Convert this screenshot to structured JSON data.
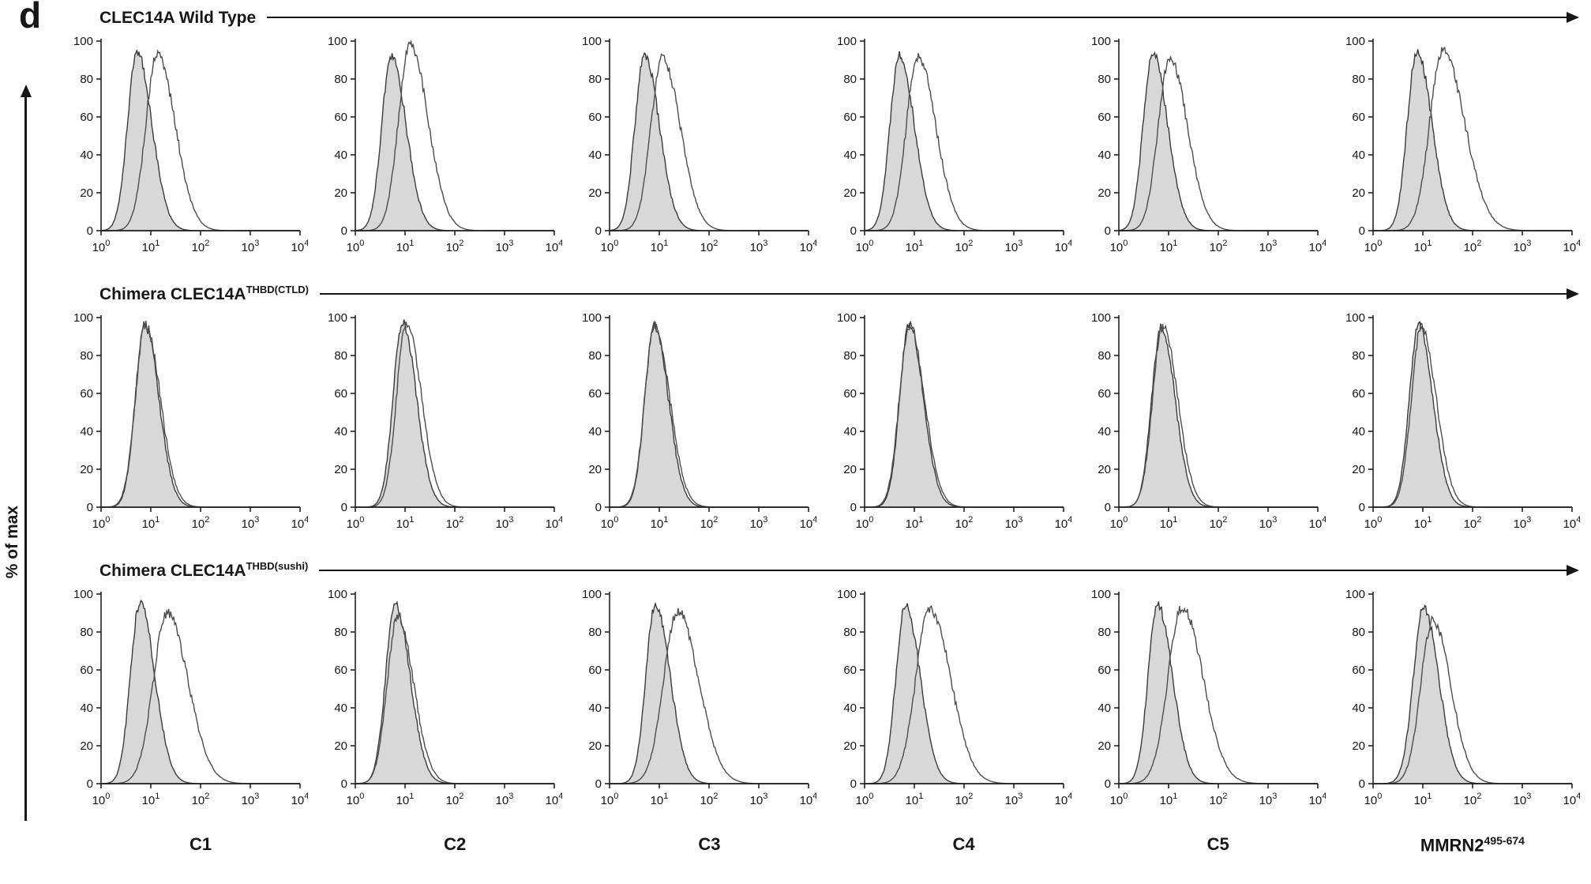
{
  "panel_label": "d",
  "y_axis_label": "% of max",
  "rows": [
    {
      "title": "CLEC14A Wild Type",
      "superscript": ""
    },
    {
      "title": "Chimera CLEC14A",
      "superscript": "THBD(CTLD)"
    },
    {
      "title": "Chimera CLEC14A",
      "superscript": "THBD(sushi)"
    }
  ],
  "columns": [
    {
      "label": "C1",
      "superscript": ""
    },
    {
      "label": "C2",
      "superscript": ""
    },
    {
      "label": "C3",
      "superscript": ""
    },
    {
      "label": "C4",
      "superscript": ""
    },
    {
      "label": "C5",
      "superscript": ""
    },
    {
      "label": "MMRN2",
      "superscript": "495-674"
    }
  ],
  "axes": {
    "y_label": "% of max",
    "y_ticks": [
      0,
      20,
      40,
      60,
      80,
      100
    ],
    "x_scale": "log10",
    "x_tick_exponents": [
      0,
      1,
      2,
      3,
      4
    ],
    "x_tick_base": "10"
  },
  "colors": {
    "filled_fill": "#d8d8d8",
    "filled_stroke": "#3c3c3c",
    "open_stroke": "#4d4d4d",
    "axis": "#161616",
    "text": "#161616"
  },
  "chart_data": [
    {
      "row": 0,
      "col": 0,
      "row_title": "CLEC14A Wild Type",
      "column_label": "C1",
      "type": "area",
      "x_scale": "log10",
      "xlim_decades": [
        0,
        4
      ],
      "ylim": [
        0,
        100
      ],
      "series": [
        {
          "name": "gray-filled",
          "peak_log10": 0.72,
          "peak_percent": 94,
          "sigma_left": 0.19,
          "sigma_right": 0.3
        },
        {
          "name": "open-line",
          "peak_log10": 1.13,
          "peak_percent": 93,
          "sigma_left": 0.23,
          "sigma_right": 0.36
        }
      ]
    },
    {
      "row": 0,
      "col": 1,
      "row_title": "CLEC14A Wild Type",
      "column_label": "C2",
      "type": "area",
      "x_scale": "log10",
      "xlim_decades": [
        0,
        4
      ],
      "ylim": [
        0,
        100
      ],
      "series": [
        {
          "name": "gray-filled",
          "peak_log10": 0.72,
          "peak_percent": 92,
          "sigma_left": 0.19,
          "sigma_right": 0.3
        },
        {
          "name": "open-line",
          "peak_log10": 1.1,
          "peak_percent": 98,
          "sigma_left": 0.23,
          "sigma_right": 0.36
        }
      ]
    },
    {
      "row": 0,
      "col": 2,
      "row_title": "CLEC14A Wild Type",
      "column_label": "C3",
      "type": "area",
      "x_scale": "log10",
      "xlim_decades": [
        0,
        4
      ],
      "ylim": [
        0,
        100
      ],
      "series": [
        {
          "name": "gray-filled",
          "peak_log10": 0.7,
          "peak_percent": 93,
          "sigma_left": 0.19,
          "sigma_right": 0.3
        },
        {
          "name": "open-line",
          "peak_log10": 1.06,
          "peak_percent": 91,
          "sigma_left": 0.23,
          "sigma_right": 0.36
        }
      ]
    },
    {
      "row": 0,
      "col": 3,
      "row_title": "CLEC14A Wild Type",
      "column_label": "C4",
      "type": "area",
      "x_scale": "log10",
      "xlim_decades": [
        0,
        4
      ],
      "ylim": [
        0,
        100
      ],
      "series": [
        {
          "name": "gray-filled",
          "peak_log10": 0.7,
          "peak_percent": 93,
          "sigma_left": 0.19,
          "sigma_right": 0.3
        },
        {
          "name": "open-line",
          "peak_log10": 1.07,
          "peak_percent": 92,
          "sigma_left": 0.23,
          "sigma_right": 0.36
        }
      ]
    },
    {
      "row": 0,
      "col": 4,
      "row_title": "CLEC14A Wild Type",
      "column_label": "C5",
      "type": "area",
      "x_scale": "log10",
      "xlim_decades": [
        0,
        4
      ],
      "ylim": [
        0,
        100
      ],
      "series": [
        {
          "name": "gray-filled",
          "peak_log10": 0.68,
          "peak_percent": 94,
          "sigma_left": 0.19,
          "sigma_right": 0.3
        },
        {
          "name": "open-line",
          "peak_log10": 1.02,
          "peak_percent": 91,
          "sigma_left": 0.23,
          "sigma_right": 0.36
        }
      ]
    },
    {
      "row": 0,
      "col": 5,
      "row_title": "CLEC14A Wild Type",
      "column_label": "MMRN2 495-674",
      "type": "area",
      "x_scale": "log10",
      "xlim_decades": [
        0,
        4
      ],
      "ylim": [
        0,
        100
      ],
      "series": [
        {
          "name": "gray-filled",
          "peak_log10": 0.88,
          "peak_percent": 95,
          "sigma_left": 0.19,
          "sigma_right": 0.3
        },
        {
          "name": "open-line",
          "peak_log10": 1.4,
          "peak_percent": 95,
          "sigma_left": 0.26,
          "sigma_right": 0.44
        }
      ]
    },
    {
      "row": 1,
      "col": 0,
      "row_title": "Chimera CLEC14A THBD(CTLD)",
      "column_label": "C1",
      "type": "area",
      "x_scale": "log10",
      "xlim_decades": [
        0,
        4
      ],
      "ylim": [
        0,
        100
      ],
      "series": [
        {
          "name": "gray-filled",
          "peak_log10": 0.88,
          "peak_percent": 96,
          "sigma_left": 0.19,
          "sigma_right": 0.28
        },
        {
          "name": "open-line",
          "peak_log10": 0.89,
          "peak_percent": 96,
          "sigma_left": 0.2,
          "sigma_right": 0.3
        }
      ]
    },
    {
      "row": 1,
      "col": 1,
      "row_title": "Chimera CLEC14A THBD(CTLD)",
      "column_label": "C2",
      "type": "area",
      "x_scale": "log10",
      "xlim_decades": [
        0,
        4
      ],
      "ylim": [
        0,
        100
      ],
      "series": [
        {
          "name": "gray-filled",
          "peak_log10": 0.95,
          "peak_percent": 97,
          "sigma_left": 0.19,
          "sigma_right": 0.28
        },
        {
          "name": "open-line",
          "peak_log10": 1.03,
          "peak_percent": 97,
          "sigma_left": 0.2,
          "sigma_right": 0.3
        }
      ]
    },
    {
      "row": 1,
      "col": 2,
      "row_title": "Chimera CLEC14A THBD(CTLD)",
      "column_label": "C3",
      "type": "area",
      "x_scale": "log10",
      "xlim_decades": [
        0,
        4
      ],
      "ylim": [
        0,
        100
      ],
      "series": [
        {
          "name": "gray-filled",
          "peak_log10": 0.9,
          "peak_percent": 96,
          "sigma_left": 0.19,
          "sigma_right": 0.28
        },
        {
          "name": "open-line",
          "peak_log10": 0.91,
          "peak_percent": 96,
          "sigma_left": 0.2,
          "sigma_right": 0.3
        }
      ]
    },
    {
      "row": 1,
      "col": 3,
      "row_title": "Chimera CLEC14A THBD(CTLD)",
      "column_label": "C4",
      "type": "area",
      "x_scale": "log10",
      "xlim_decades": [
        0,
        4
      ],
      "ylim": [
        0,
        100
      ],
      "series": [
        {
          "name": "gray-filled",
          "peak_log10": 0.9,
          "peak_percent": 97,
          "sigma_left": 0.19,
          "sigma_right": 0.28
        },
        {
          "name": "open-line",
          "peak_log10": 0.9,
          "peak_percent": 96,
          "sigma_left": 0.2,
          "sigma_right": 0.3
        }
      ]
    },
    {
      "row": 1,
      "col": 4,
      "row_title": "Chimera CLEC14A THBD(CTLD)",
      "column_label": "C5",
      "type": "area",
      "x_scale": "log10",
      "xlim_decades": [
        0,
        4
      ],
      "ylim": [
        0,
        100
      ],
      "series": [
        {
          "name": "gray-filled",
          "peak_log10": 0.85,
          "peak_percent": 95,
          "sigma_left": 0.19,
          "sigma_right": 0.28
        },
        {
          "name": "open-line",
          "peak_log10": 0.88,
          "peak_percent": 96,
          "sigma_left": 0.2,
          "sigma_right": 0.3
        }
      ]
    },
    {
      "row": 1,
      "col": 5,
      "row_title": "Chimera CLEC14A THBD(CTLD)",
      "column_label": "MMRN2 495-674",
      "type": "area",
      "x_scale": "log10",
      "xlim_decades": [
        0,
        4
      ],
      "ylim": [
        0,
        100
      ],
      "series": [
        {
          "name": "gray-filled",
          "peak_log10": 0.92,
          "peak_percent": 96,
          "sigma_left": 0.19,
          "sigma_right": 0.28
        },
        {
          "name": "open-line",
          "peak_log10": 0.97,
          "peak_percent": 95,
          "sigma_left": 0.2,
          "sigma_right": 0.3
        }
      ]
    },
    {
      "row": 2,
      "col": 0,
      "row_title": "Chimera CLEC14A THBD(sushi)",
      "column_label": "C1",
      "type": "area",
      "x_scale": "log10",
      "xlim_decades": [
        0,
        4
      ],
      "ylim": [
        0,
        100
      ],
      "series": [
        {
          "name": "gray-filled",
          "peak_log10": 0.78,
          "peak_percent": 95,
          "sigma_left": 0.19,
          "sigma_right": 0.3
        },
        {
          "name": "open-line",
          "peak_log10": 1.33,
          "peak_percent": 90,
          "sigma_left": 0.28,
          "sigma_right": 0.42
        }
      ]
    },
    {
      "row": 2,
      "col": 1,
      "row_title": "Chimera CLEC14A THBD(sushi)",
      "column_label": "C2",
      "type": "area",
      "x_scale": "log10",
      "xlim_decades": [
        0,
        4
      ],
      "ylim": [
        0,
        100
      ],
      "series": [
        {
          "name": "gray-filled",
          "peak_log10": 0.8,
          "peak_percent": 94,
          "sigma_left": 0.19,
          "sigma_right": 0.3
        },
        {
          "name": "open-line",
          "peak_log10": 0.85,
          "peak_percent": 88,
          "sigma_left": 0.21,
          "sigma_right": 0.32
        }
      ]
    },
    {
      "row": 2,
      "col": 2,
      "row_title": "Chimera CLEC14A THBD(sushi)",
      "column_label": "C3",
      "type": "area",
      "x_scale": "log10",
      "xlim_decades": [
        0,
        4
      ],
      "ylim": [
        0,
        100
      ],
      "series": [
        {
          "name": "gray-filled",
          "peak_log10": 0.92,
          "peak_percent": 94,
          "sigma_left": 0.19,
          "sigma_right": 0.3
        },
        {
          "name": "open-line",
          "peak_log10": 1.37,
          "peak_percent": 91,
          "sigma_left": 0.28,
          "sigma_right": 0.42
        }
      ]
    },
    {
      "row": 2,
      "col": 3,
      "row_title": "Chimera CLEC14A THBD(sushi)",
      "column_label": "C4",
      "type": "area",
      "x_scale": "log10",
      "xlim_decades": [
        0,
        4
      ],
      "ylim": [
        0,
        100
      ],
      "series": [
        {
          "name": "gray-filled",
          "peak_log10": 0.82,
          "peak_percent": 94,
          "sigma_left": 0.19,
          "sigma_right": 0.3
        },
        {
          "name": "open-line",
          "peak_log10": 1.31,
          "peak_percent": 92,
          "sigma_left": 0.28,
          "sigma_right": 0.42
        }
      ]
    },
    {
      "row": 2,
      "col": 4,
      "row_title": "Chimera CLEC14A THBD(sushi)",
      "column_label": "C5",
      "type": "area",
      "x_scale": "log10",
      "xlim_decades": [
        0,
        4
      ],
      "ylim": [
        0,
        100
      ],
      "series": [
        {
          "name": "gray-filled",
          "peak_log10": 0.78,
          "peak_percent": 94,
          "sigma_left": 0.19,
          "sigma_right": 0.3
        },
        {
          "name": "open-line",
          "peak_log10": 1.27,
          "peak_percent": 93,
          "sigma_left": 0.28,
          "sigma_right": 0.42
        }
      ]
    },
    {
      "row": 2,
      "col": 5,
      "row_title": "Chimera CLEC14A THBD(sushi)",
      "column_label": "MMRN2 495-674",
      "type": "area",
      "x_scale": "log10",
      "xlim_decades": [
        0,
        4
      ],
      "ylim": [
        0,
        100
      ],
      "series": [
        {
          "name": "gray-filled",
          "peak_log10": 1.02,
          "peak_percent": 93,
          "sigma_left": 0.21,
          "sigma_right": 0.3
        },
        {
          "name": "open-line",
          "peak_log10": 1.2,
          "peak_percent": 86,
          "sigma_left": 0.24,
          "sigma_right": 0.36
        }
      ]
    }
  ]
}
